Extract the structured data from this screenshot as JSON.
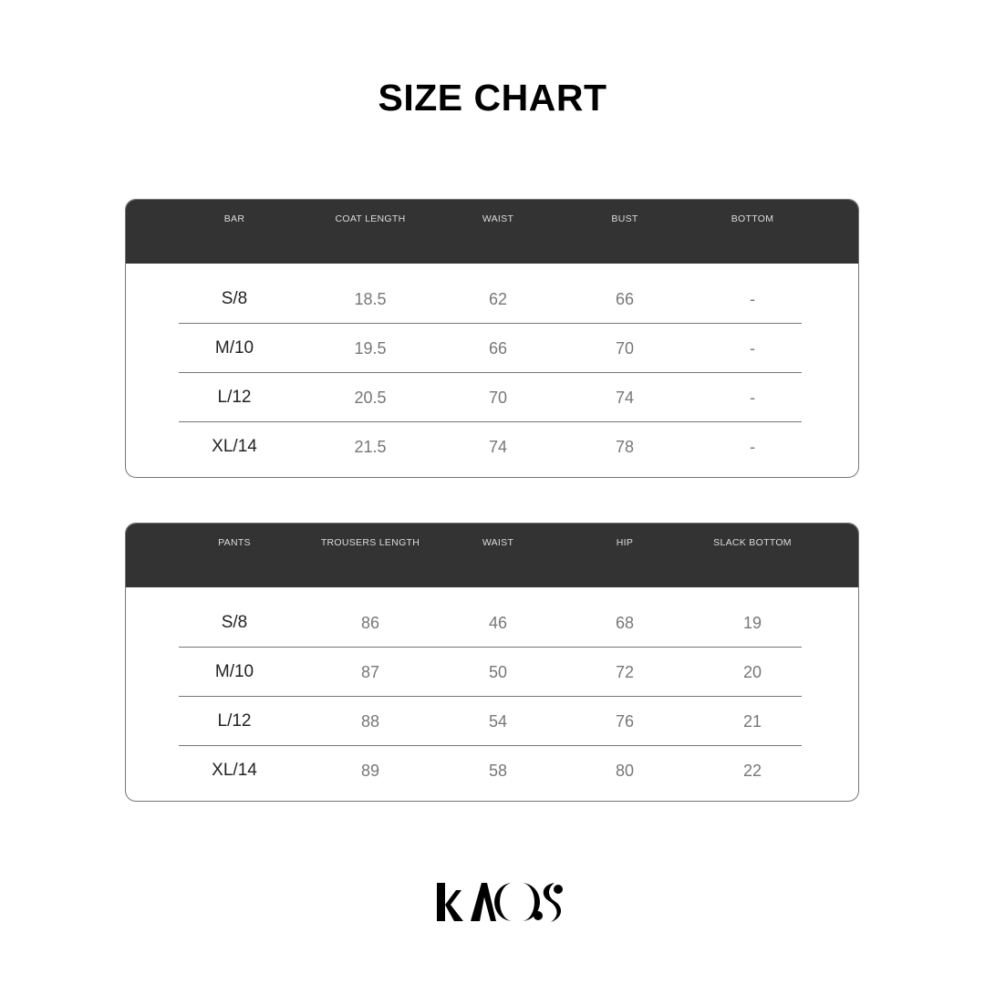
{
  "title": "SIZE CHART",
  "tables": [
    {
      "headers": [
        "BAR",
        "COAT LENGTH",
        "WAIST",
        "BUST",
        "BOTTOM"
      ],
      "rows": [
        [
          "S/8",
          "18.5",
          "62",
          "66",
          "-"
        ],
        [
          "M/10",
          "19.5",
          "66",
          "70",
          "-"
        ],
        [
          "L/12",
          "20.5",
          "70",
          "74",
          "-"
        ],
        [
          "XL/14",
          "21.5",
          "74",
          "78",
          "-"
        ]
      ]
    },
    {
      "headers": [
        "PANTS",
        "TROUSERS LENGTH",
        "WAIST",
        "HIP",
        "SLACK BOTTOM"
      ],
      "rows": [
        [
          "S/8",
          "86",
          "46",
          "68",
          "19"
        ],
        [
          "M/10",
          "87",
          "50",
          "72",
          "20"
        ],
        [
          "L/12",
          "88",
          "54",
          "76",
          "21"
        ],
        [
          "XL/14",
          "89",
          "58",
          "80",
          "22"
        ]
      ]
    }
  ],
  "logo": {
    "text": "KAOS"
  },
  "colors": {
    "header_bg": "#333333",
    "text_dark": "#222222",
    "text_muted": "#777777"
  }
}
